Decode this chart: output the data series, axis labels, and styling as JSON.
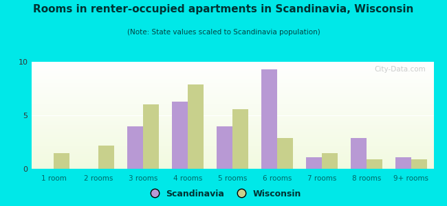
{
  "categories": [
    "1 room",
    "2 rooms",
    "3 rooms",
    "4 rooms",
    "5 rooms",
    "6 rooms",
    "7 rooms",
    "8 rooms",
    "9+ rooms"
  ],
  "scandinavia": [
    0,
    0,
    4.0,
    6.3,
    4.0,
    9.3,
    1.1,
    2.9,
    1.1
  ],
  "wisconsin": [
    1.5,
    2.2,
    6.0,
    7.9,
    5.6,
    2.9,
    1.5,
    0.9,
    0.9
  ],
  "scandinavia_color": "#b899d4",
  "wisconsin_color": "#c8d08c",
  "title": "Rooms in renter-occupied apartments in Scandinavia, Wisconsin",
  "subtitle": "(Note: State values scaled to Scandinavia population)",
  "ylim": [
    0,
    10
  ],
  "yticks": [
    0,
    5,
    10
  ],
  "background_outer": "#00e8e8",
  "legend_scandinavia": "Scandinavia",
  "legend_wisconsin": "Wisconsin",
  "bar_width": 0.35
}
